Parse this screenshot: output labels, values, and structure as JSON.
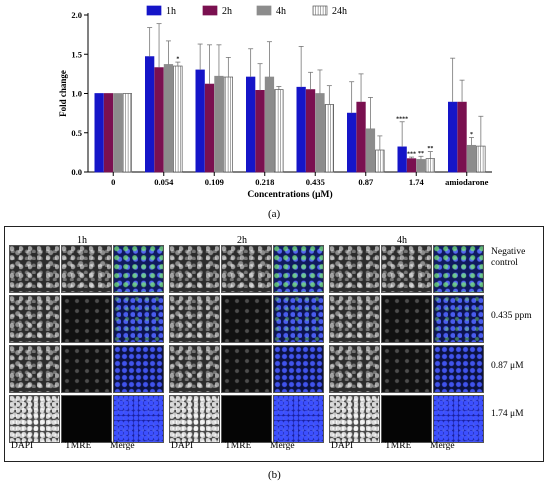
{
  "chart_data": {
    "type": "bar",
    "ylabel": "Fold change",
    "xlabel": "Concentrations (μM)",
    "ylim": [
      0,
      2.0
    ],
    "yticks": [
      "0.0",
      "0.5",
      "1.0",
      "1.5",
      "2.0"
    ],
    "categories": [
      "0",
      "0.054",
      "0.109",
      "0.218",
      "0.435",
      "0.87",
      "1.74",
      "amiodarone"
    ],
    "legend_position": "top",
    "series": [
      {
        "name": "1h",
        "color": "#1515c8",
        "fill": "solid",
        "values": [
          1.0,
          1.47,
          1.3,
          1.21,
          1.08,
          0.75,
          0.32,
          0.89
        ],
        "errors": [
          0,
          0.37,
          0.33,
          0.36,
          0.52,
          0.4,
          0.32,
          0.56
        ]
      },
      {
        "name": "2h",
        "color": "#7a1050",
        "fill": "solid",
        "values": [
          1.0,
          1.33,
          1.12,
          1.04,
          1.05,
          0.89,
          0.17,
          0.89
        ],
        "errors": [
          0,
          0.56,
          0.5,
          0.34,
          0.22,
          0.36,
          0.02,
          0.28
        ]
      },
      {
        "name": "4h",
        "color": "#8c8c8c",
        "fill": "solid",
        "values": [
          1.0,
          1.37,
          1.22,
          1.21,
          1.0,
          0.55,
          0.16,
          0.34
        ],
        "errors": [
          0,
          0.3,
          0.4,
          0.45,
          0.3,
          0.4,
          0.04,
          0.1
        ]
      },
      {
        "name": "24h",
        "color": "#ffffff",
        "fill": "striped",
        "values": [
          1.0,
          1.35,
          1.21,
          1.05,
          0.86,
          0.28,
          0.17,
          0.33
        ],
        "errors": [
          0,
          0.05,
          0.25,
          0.04,
          0.24,
          0.18,
          0.09,
          0.38
        ]
      }
    ],
    "annotations": [
      {
        "category": "0.054",
        "series": "24h",
        "text": "*"
      },
      {
        "category": "1.74",
        "series": "1h",
        "text": "****"
      },
      {
        "category": "1.74",
        "series": "2h",
        "text": "***"
      },
      {
        "category": "1.74",
        "series": "4h",
        "text": "**"
      },
      {
        "category": "1.74",
        "series": "24h",
        "text": "**"
      },
      {
        "category": "amiodarone",
        "series": "4h",
        "text": "*"
      }
    ]
  },
  "panel_a_caption": "(a)",
  "panel_b_caption": "(b)",
  "micrographs": {
    "time_labels": [
      "1h",
      "2h",
      "4h"
    ],
    "column_labels": [
      "DAPI",
      "TMRE",
      "Merge"
    ],
    "row_labels": [
      "Negative control",
      "0.435 ppm",
      "0.87 μM",
      "1.74 μM"
    ]
  }
}
